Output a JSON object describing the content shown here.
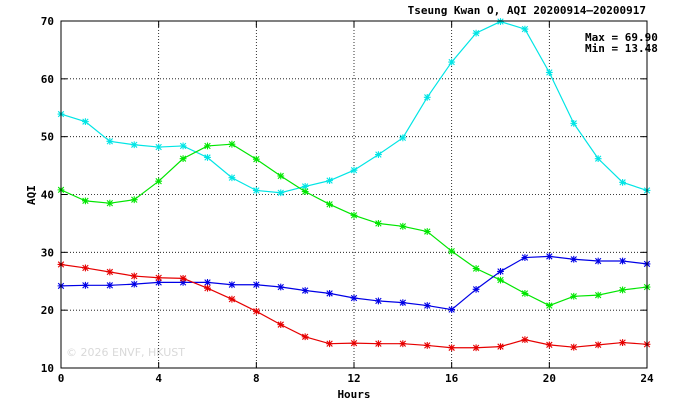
{
  "chart_data": {
    "type": "line",
    "title": "Tseung Kwan O, AQI 20200914—20200917",
    "xlabel": "Hours",
    "ylabel": "AQI",
    "xlim": [
      0,
      24
    ],
    "ylim": [
      10,
      70
    ],
    "xticks": [
      0,
      4,
      8,
      12,
      16,
      20,
      24
    ],
    "yticks": [
      10,
      20,
      30,
      40,
      50,
      60,
      70
    ],
    "grid": true,
    "annotations": {
      "max": "Max = 69.90",
      "min": "Min = 13.48"
    },
    "watermark": "© 2026  ENVF, HKUST",
    "x": [
      0,
      1,
      2,
      3,
      4,
      5,
      6,
      7,
      8,
      9,
      10,
      11,
      12,
      13,
      14,
      15,
      16,
      17,
      18,
      19,
      20,
      21,
      22,
      23,
      24
    ],
    "series": [
      {
        "color": "#00e5e5",
        "values": [
          53.9,
          52.6,
          49.2,
          48.6,
          48.2,
          48.4,
          46.4,
          42.9,
          40.7,
          40.3,
          41.4,
          42.4,
          44.2,
          46.9,
          49.8,
          56.8,
          62.9,
          67.9,
          69.9,
          68.6,
          61.1,
          52.3,
          46.2,
          42.1,
          40.7
        ]
      },
      {
        "color": "#00e600",
        "values": [
          40.8,
          38.9,
          38.5,
          39.1,
          42.3,
          46.2,
          48.4,
          48.7,
          46.1,
          43.2,
          40.5,
          38.3,
          36.4,
          35.0,
          34.5,
          33.6,
          30.2,
          27.2,
          25.2,
          22.9,
          20.8,
          22.4,
          22.6,
          23.5,
          24.0
        ]
      },
      {
        "color": "#0000e6",
        "values": [
          24.2,
          24.3,
          24.3,
          24.5,
          24.8,
          24.8,
          24.8,
          24.4,
          24.4,
          24.0,
          23.4,
          22.9,
          22.1,
          21.6,
          21.3,
          20.8,
          20.1,
          23.6,
          26.7,
          29.1,
          29.3,
          28.8,
          28.5,
          28.5,
          28.0
        ]
      },
      {
        "color": "#e60000",
        "values": [
          27.9,
          27.3,
          26.6,
          25.9,
          25.6,
          25.5,
          23.8,
          21.9,
          19.8,
          17.5,
          15.4,
          14.2,
          14.3,
          14.2,
          14.2,
          13.9,
          13.5,
          13.5,
          13.7,
          14.9,
          14.0,
          13.6,
          14.0,
          14.4,
          14.1
        ]
      }
    ]
  }
}
